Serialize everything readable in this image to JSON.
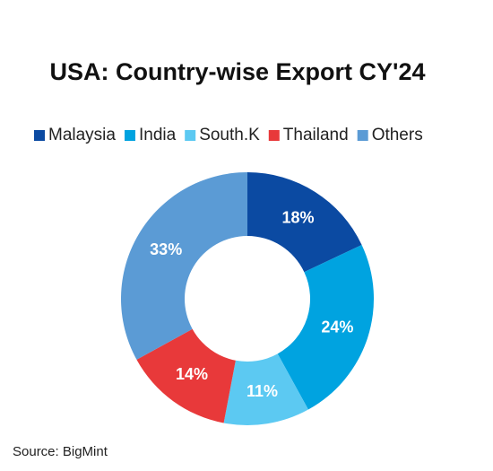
{
  "chart_data": {
    "type": "donut",
    "title": "USA: Country-wise Export CY'24",
    "categories": [
      "Malaysia",
      "India",
      "South.K",
      "Thailand",
      "Others"
    ],
    "values": [
      18,
      24,
      11,
      14,
      33
    ],
    "value_labels": [
      "18%",
      "24%",
      "11%",
      "14%",
      "33%"
    ],
    "colors": [
      "#0b4aa2",
      "#00a3e0",
      "#5cc9f2",
      "#e8393a",
      "#5b9bd5"
    ],
    "legend": "top",
    "source": "Source: BigMint"
  }
}
